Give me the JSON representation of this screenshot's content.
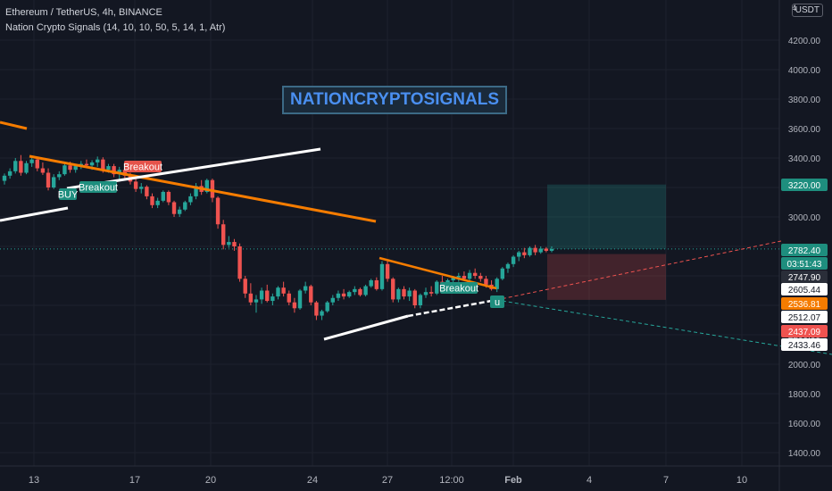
{
  "header": {
    "symbol_line": "Ethereum / TetherUS, 4h, BINANCE",
    "indicator_line": "Nation Crypto Signals  (14, 10, 10, 50, 5, 14, 1, Atr)",
    "currency": "USDT",
    "top_axis_num": "4"
  },
  "banner": "NATIONCRYPTOSIGNALS",
  "colors": {
    "background": "#131722",
    "up": "#26a69a",
    "down": "#ef5350",
    "orange": "#f57c00",
    "white_line": "#ffffff",
    "axis_text": "#b2b5be"
  },
  "chart_data": {
    "type": "candlestick",
    "symbol": "Ethereum / TetherUS",
    "interval": "4h",
    "exchange": "BINANCE",
    "y_axis": {
      "ticks": [
        "4200.00",
        "4000.00",
        "3800.00",
        "3600.00",
        "3400.00",
        "3200.00",
        "3000.00",
        "2800.00",
        "2600.00",
        "2400.00",
        "2200.00",
        "2000.00",
        "1800.00",
        "1600.00",
        "1400.00"
      ],
      "range": [
        1350,
        4300
      ]
    },
    "x_axis": {
      "ticks": [
        "13",
        "17",
        "20",
        "24",
        "27",
        "12:00",
        "Feb",
        "4",
        "7",
        "10"
      ]
    },
    "price_labels": [
      {
        "text": "3220.00",
        "kind": "target",
        "value": 3220
      },
      {
        "text": "2782.40",
        "kind": "last",
        "value": 2782.4
      },
      {
        "text": "03:51:43",
        "kind": "countdown",
        "value": 2745
      },
      {
        "text": "2747.90",
        "kind": "dark",
        "value": 2747.9
      },
      {
        "text": "2605.44",
        "kind": "light",
        "value": 2605.44
      },
      {
        "text": "2536.81",
        "kind": "orange",
        "value": 2536.81
      },
      {
        "text": "2512.07",
        "kind": "light",
        "value": 2512.07
      },
      {
        "text": "2437.09",
        "kind": "red",
        "value": 2437.09
      },
      {
        "text": "2433.46",
        "kind": "light",
        "value": 2433.46
      }
    ],
    "signals": [
      {
        "text": "BUY",
        "kind": "buy"
      },
      {
        "text": "Breakout",
        "kind": "bull"
      },
      {
        "text": "Breakout",
        "kind": "bear"
      },
      {
        "text": "Breakout",
        "kind": "bull"
      },
      {
        "text": "u",
        "kind": "arrow"
      }
    ],
    "candles": [
      [
        3245,
        3295,
        3220,
        3280
      ],
      [
        3280,
        3330,
        3260,
        3310
      ],
      [
        3310,
        3400,
        3295,
        3380
      ],
      [
        3380,
        3420,
        3280,
        3300
      ],
      [
        3300,
        3380,
        3290,
        3365
      ],
      [
        3365,
        3410,
        3340,
        3390
      ],
      [
        3390,
        3400,
        3310,
        3330
      ],
      [
        3330,
        3370,
        3285,
        3300
      ],
      [
        3300,
        3330,
        3180,
        3200
      ],
      [
        3200,
        3290,
        3190,
        3270
      ],
      [
        3270,
        3310,
        3250,
        3290
      ],
      [
        3290,
        3370,
        3280,
        3350
      ],
      [
        3350,
        3375,
        3300,
        3320
      ],
      [
        3320,
        3360,
        3300,
        3345
      ],
      [
        3345,
        3380,
        3325,
        3360
      ],
      [
        3360,
        3390,
        3330,
        3350
      ],
      [
        3350,
        3385,
        3320,
        3370
      ],
      [
        3370,
        3410,
        3340,
        3390
      ],
      [
        3390,
        3405,
        3300,
        3320
      ],
      [
        3320,
        3360,
        3300,
        3345
      ],
      [
        3345,
        3360,
        3270,
        3290
      ],
      [
        3290,
        3340,
        3240,
        3320
      ],
      [
        3320,
        3340,
        3260,
        3280
      ],
      [
        3280,
        3300,
        3220,
        3240
      ],
      [
        3240,
        3260,
        3170,
        3190
      ],
      [
        3190,
        3230,
        3160,
        3205
      ],
      [
        3205,
        3215,
        3120,
        3140
      ],
      [
        3140,
        3160,
        3060,
        3080
      ],
      [
        3080,
        3130,
        3060,
        3110
      ],
      [
        3110,
        3180,
        3100,
        3170
      ],
      [
        3170,
        3180,
        3080,
        3100
      ],
      [
        3100,
        3110,
        3000,
        3020
      ],
      [
        3020,
        3070,
        3000,
        3050
      ],
      [
        3050,
        3110,
        3040,
        3100
      ],
      [
        3100,
        3160,
        3080,
        3140
      ],
      [
        3140,
        3230,
        3120,
        3210
      ],
      [
        3210,
        3250,
        3150,
        3170
      ],
      [
        3170,
        3260,
        3160,
        3250
      ],
      [
        3250,
        3260,
        3100,
        3130
      ],
      [
        3130,
        3140,
        2920,
        2950
      ],
      [
        2950,
        2980,
        2780,
        2810
      ],
      [
        2810,
        2870,
        2790,
        2830
      ],
      [
        2830,
        2850,
        2770,
        2800
      ],
      [
        2800,
        2820,
        2560,
        2580
      ],
      [
        2580,
        2600,
        2450,
        2480
      ],
      [
        2480,
        2550,
        2400,
        2420
      ],
      [
        2420,
        2470,
        2350,
        2440
      ],
      [
        2440,
        2520,
        2410,
        2500
      ],
      [
        2500,
        2540,
        2420,
        2430
      ],
      [
        2430,
        2480,
        2400,
        2460
      ],
      [
        2460,
        2530,
        2440,
        2520
      ],
      [
        2520,
        2560,
        2460,
        2480
      ],
      [
        2480,
        2500,
        2400,
        2420
      ],
      [
        2420,
        2450,
        2350,
        2380
      ],
      [
        2380,
        2510,
        2370,
        2500
      ],
      [
        2500,
        2560,
        2480,
        2530
      ],
      [
        2530,
        2540,
        2400,
        2420
      ],
      [
        2420,
        2430,
        2300,
        2330
      ],
      [
        2330,
        2370,
        2300,
        2360
      ],
      [
        2360,
        2430,
        2350,
        2420
      ],
      [
        2420,
        2470,
        2400,
        2450
      ],
      [
        2450,
        2500,
        2430,
        2480
      ],
      [
        2480,
        2510,
        2440,
        2460
      ],
      [
        2460,
        2500,
        2450,
        2490
      ],
      [
        2490,
        2530,
        2470,
        2510
      ],
      [
        2510,
        2520,
        2460,
        2470
      ],
      [
        2470,
        2540,
        2460,
        2530
      ],
      [
        2530,
        2580,
        2520,
        2570
      ],
      [
        2570,
        2590,
        2500,
        2510
      ],
      [
        2510,
        2700,
        2500,
        2680
      ],
      [
        2680,
        2700,
        2560,
        2580
      ],
      [
        2580,
        2590,
        2420,
        2440
      ],
      [
        2440,
        2520,
        2420,
        2510
      ],
      [
        2510,
        2530,
        2440,
        2460
      ],
      [
        2460,
        2520,
        2430,
        2500
      ],
      [
        2500,
        2510,
        2380,
        2400
      ],
      [
        2400,
        2480,
        2380,
        2470
      ],
      [
        2470,
        2520,
        2450,
        2490
      ],
      [
        2490,
        2530,
        2460,
        2480
      ],
      [
        2480,
        2570,
        2470,
        2560
      ],
      [
        2560,
        2600,
        2530,
        2550
      ],
      [
        2550,
        2580,
        2520,
        2570
      ],
      [
        2570,
        2600,
        2550,
        2590
      ],
      [
        2590,
        2620,
        2560,
        2600
      ],
      [
        2600,
        2630,
        2570,
        2580
      ],
      [
        2580,
        2640,
        2570,
        2620
      ],
      [
        2620,
        2650,
        2580,
        2600
      ],
      [
        2600,
        2620,
        2560,
        2580
      ],
      [
        2580,
        2600,
        2520,
        2540
      ],
      [
        2540,
        2570,
        2500,
        2510
      ],
      [
        2510,
        2590,
        2490,
        2580
      ],
      [
        2580,
        2660,
        2570,
        2650
      ],
      [
        2650,
        2690,
        2620,
        2680
      ],
      [
        2680,
        2740,
        2660,
        2730
      ],
      [
        2730,
        2770,
        2700,
        2760
      ],
      [
        2760,
        2790,
        2720,
        2740
      ],
      [
        2740,
        2800,
        2730,
        2790
      ],
      [
        2790,
        2810,
        2740,
        2760
      ],
      [
        2760,
        2800,
        2750,
        2785
      ],
      [
        2785,
        2795,
        2760,
        2770
      ],
      [
        2770,
        2800,
        2760,
        2782
      ]
    ]
  }
}
